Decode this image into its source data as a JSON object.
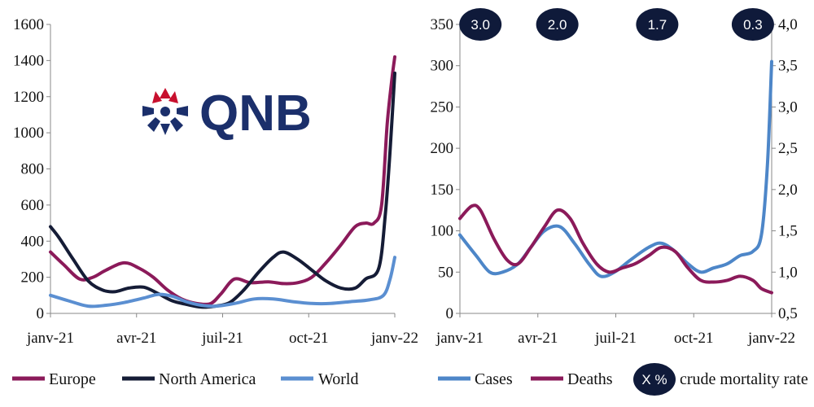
{
  "logo": {
    "text": "QNB",
    "color": "#1b2f6b",
    "accent": "#c8102e"
  },
  "colors": {
    "europe": "#8b1a5a",
    "north_america": "#151c36",
    "world": "#5b8fd1",
    "cases": "#4d86c8",
    "deaths": "#8b1a5a",
    "bubble": "#0f1a3a"
  },
  "chart_data": [
    {
      "type": "line",
      "xlim": [
        "2021-01-01",
        "2022-01-01"
      ],
      "ylim": [
        0,
        1600
      ],
      "xticks": [
        "janv-21",
        "avr-21",
        "juil-21",
        "oct-21",
        "janv-22"
      ],
      "yticks": [
        "0",
        "200",
        "400",
        "600",
        "800",
        "1000",
        "1200",
        "1400",
        "1600"
      ],
      "series": [
        {
          "name": "Europe",
          "x": [
            "2021-01-01",
            "2021-01-15",
            "2021-02-01",
            "2021-02-15",
            "2021-03-01",
            "2021-03-20",
            "2021-04-05",
            "2021-04-20",
            "2021-05-05",
            "2021-05-20",
            "2021-06-05",
            "2021-06-20",
            "2021-07-01",
            "2021-07-15",
            "2021-08-01",
            "2021-08-20",
            "2021-09-05",
            "2021-09-20",
            "2021-10-05",
            "2021-10-20",
            "2021-11-05",
            "2021-11-20",
            "2021-12-01",
            "2021-12-10",
            "2021-12-18",
            "2021-12-24",
            "2021-12-29",
            "2022-01-01"
          ],
          "y": [
            340,
            270,
            190,
            200,
            240,
            280,
            250,
            200,
            130,
            80,
            55,
            55,
            110,
            190,
            170,
            175,
            165,
            170,
            200,
            280,
            380,
            480,
            500,
            500,
            600,
            1050,
            1300,
            1420
          ]
        },
        {
          "name": "North America",
          "x": [
            "2021-01-01",
            "2021-01-10",
            "2021-01-25",
            "2021-02-10",
            "2021-02-25",
            "2021-03-10",
            "2021-03-25",
            "2021-04-10",
            "2021-04-25",
            "2021-05-10",
            "2021-05-25",
            "2021-06-10",
            "2021-06-25",
            "2021-07-10",
            "2021-07-25",
            "2021-08-10",
            "2021-08-25",
            "2021-09-05",
            "2021-09-20",
            "2021-10-05",
            "2021-10-20",
            "2021-11-05",
            "2021-11-20",
            "2021-12-01",
            "2021-12-15",
            "2021-12-22",
            "2021-12-27",
            "2022-01-01"
          ],
          "y": [
            480,
            420,
            300,
            180,
            130,
            120,
            140,
            145,
            110,
            70,
            50,
            35,
            40,
            60,
            130,
            230,
            310,
            340,
            300,
            240,
            180,
            140,
            140,
            190,
            250,
            550,
            900,
            1330
          ]
        },
        {
          "name": "World",
          "x": [
            "2021-01-01",
            "2021-01-20",
            "2021-02-10",
            "2021-03-01",
            "2021-03-20",
            "2021-04-10",
            "2021-04-25",
            "2021-05-10",
            "2021-05-25",
            "2021-06-10",
            "2021-06-25",
            "2021-07-15",
            "2021-08-05",
            "2021-08-25",
            "2021-09-15",
            "2021-10-05",
            "2021-10-25",
            "2021-11-15",
            "2021-12-05",
            "2021-12-20",
            "2021-12-27",
            "2022-01-01"
          ],
          "y": [
            100,
            70,
            40,
            45,
            60,
            85,
            105,
            95,
            65,
            45,
            40,
            55,
            80,
            80,
            65,
            55,
            55,
            65,
            75,
            100,
            190,
            310
          ]
        }
      ]
    },
    {
      "type": "line",
      "xlim": [
        "2021-01-01",
        "2022-01-01"
      ],
      "ylim": [
        0,
        350
      ],
      "y2lim": [
        0.5,
        4.0
      ],
      "xticks": [
        "janv-21",
        "avr-21",
        "juil-21",
        "oct-21",
        "janv-22"
      ],
      "yticks": [
        "0",
        "50",
        "100",
        "150",
        "200",
        "250",
        "300",
        "350"
      ],
      "y2ticks": [
        "0,5",
        "1,0",
        "1,5",
        "2,0",
        "2,5",
        "3,0",
        "3,5",
        "4,0"
      ],
      "series": [
        {
          "name": "Cases",
          "x": [
            "2021-01-01",
            "2021-01-20",
            "2021-02-05",
            "2021-02-20",
            "2021-03-10",
            "2021-03-25",
            "2021-04-10",
            "2021-04-28",
            "2021-05-15",
            "2021-06-01",
            "2021-06-15",
            "2021-07-01",
            "2021-07-20",
            "2021-08-10",
            "2021-08-25",
            "2021-09-10",
            "2021-09-25",
            "2021-10-10",
            "2021-10-25",
            "2021-11-10",
            "2021-11-25",
            "2021-12-10",
            "2021-12-20",
            "2021-12-27",
            "2022-01-01"
          ],
          "y": [
            95,
            70,
            50,
            50,
            60,
            80,
            100,
            105,
            85,
            60,
            45,
            50,
            65,
            80,
            85,
            75,
            60,
            50,
            55,
            60,
            70,
            75,
            95,
            180,
            305
          ]
        },
        {
          "name": "Deaths",
          "x": [
            "2021-01-01",
            "2021-01-15",
            "2021-01-25",
            "2021-02-10",
            "2021-02-25",
            "2021-03-10",
            "2021-03-25",
            "2021-04-10",
            "2021-04-25",
            "2021-05-10",
            "2021-05-25",
            "2021-06-10",
            "2021-06-25",
            "2021-07-10",
            "2021-07-25",
            "2021-08-10",
            "2021-08-25",
            "2021-09-10",
            "2021-09-25",
            "2021-10-10",
            "2021-10-25",
            "2021-11-10",
            "2021-11-25",
            "2021-12-10",
            "2021-12-20",
            "2022-01-01"
          ],
          "y": [
            115,
            130,
            125,
            90,
            65,
            60,
            80,
            105,
            125,
            115,
            85,
            60,
            50,
            55,
            60,
            70,
            80,
            75,
            55,
            40,
            38,
            40,
            45,
            40,
            30,
            25
          ]
        }
      ],
      "crude_mortality_rate": [
        {
          "label": "3.0",
          "x": "2021-01-25"
        },
        {
          "label": "2.0",
          "x": "2021-04-25"
        },
        {
          "label": "1.7",
          "x": "2021-08-20"
        },
        {
          "label": "0.3",
          "x": "2021-12-10"
        }
      ]
    }
  ],
  "legend_left": [
    "Europe",
    "North America",
    "World"
  ],
  "legend_right": [
    "Cases",
    "Deaths",
    "crude mortality rate"
  ],
  "legend_bubble_label": "X %"
}
